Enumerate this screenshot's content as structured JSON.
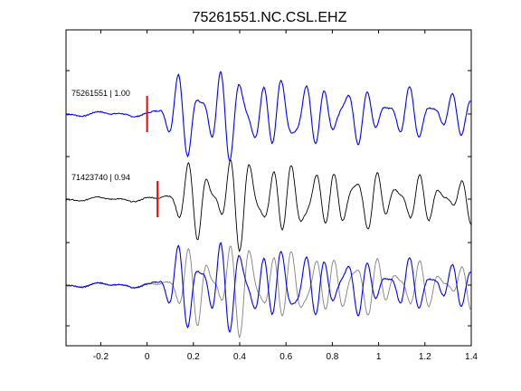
{
  "chart_data": {
    "type": "line",
    "title": "75261551.NC.CSL.EHZ",
    "xlabel": "",
    "ylabel": "",
    "xlim": [
      -0.35,
      1.4
    ],
    "x_ticks": [
      -0.2,
      0,
      0.2,
      0.4,
      0.6,
      0.8,
      1,
      1.2,
      1.4
    ],
    "x_tick_labels": [
      "-0.2",
      "0",
      "0.2",
      "0.4",
      "0.6",
      "0.8",
      "1",
      "1.2",
      "1.4"
    ],
    "grid": false,
    "legend": "none",
    "colors": {
      "blue": "#0000ff",
      "black": "#000000",
      "gray": "#808080",
      "pick": "#ff0000"
    },
    "traces": [
      {
        "label": "75261551 | 1.00",
        "color": "#0000ff",
        "pick_time": 0.0
      },
      {
        "label": "71423740 | 0.94",
        "color": "#000000",
        "pick_time": 0.045
      },
      {
        "label": "",
        "overlay_of": [
          0,
          1
        ],
        "colors": [
          "#808080",
          "#0000ff"
        ]
      }
    ]
  }
}
